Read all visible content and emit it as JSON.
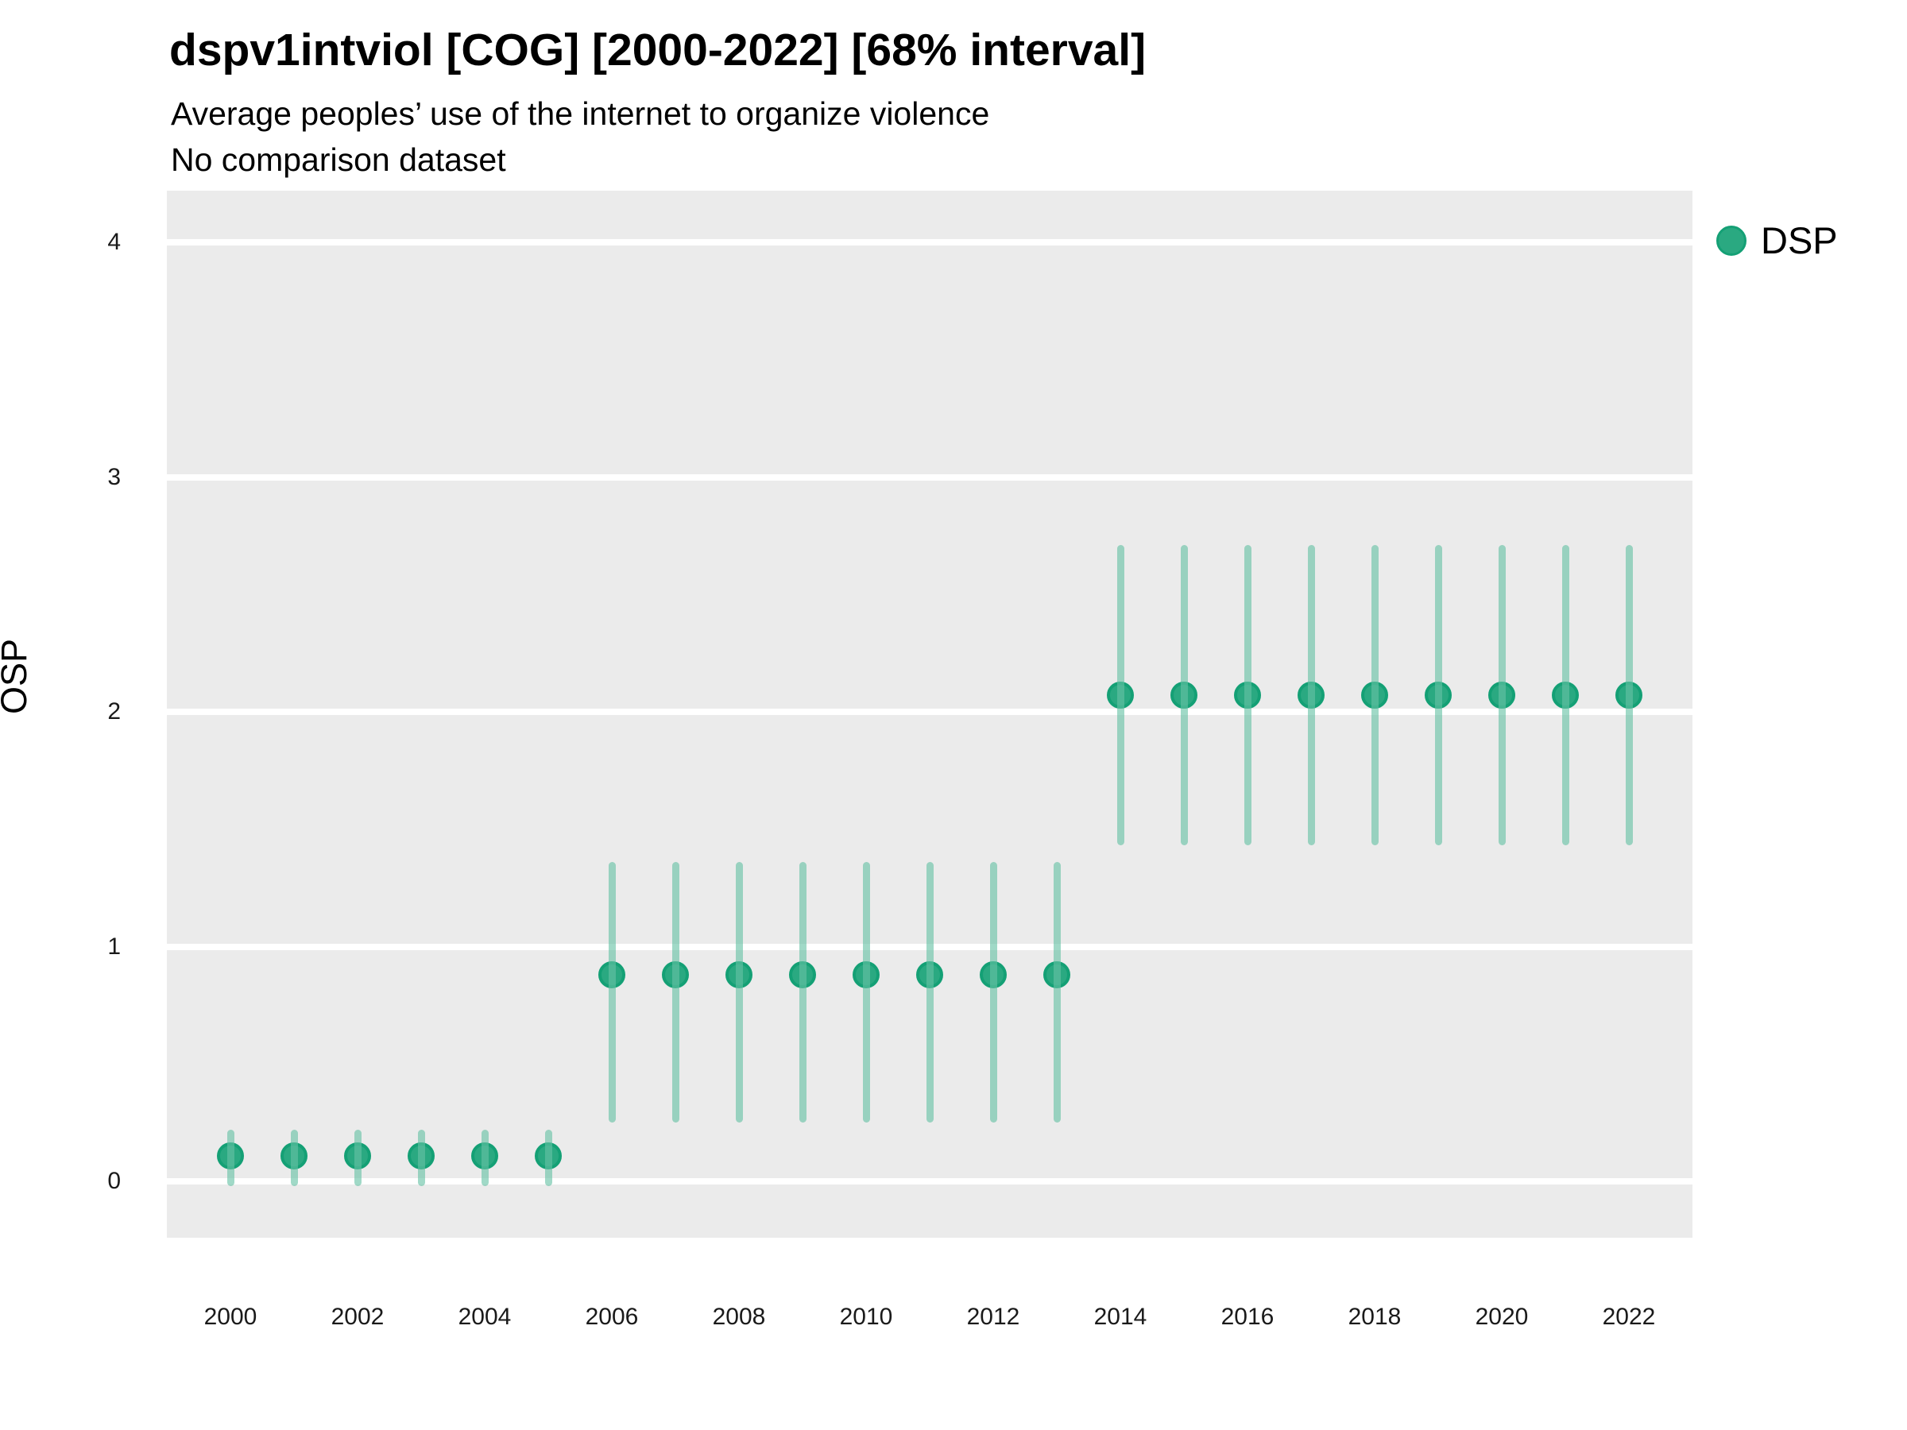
{
  "title": "dspv1intviol [COG] [2000-2022] [68% interval]",
  "subtitle": "Average peoples’ use of the internet to organize violence",
  "note": "No comparison dataset",
  "legend": {
    "position": "right",
    "items": [
      {
        "label": "DSP",
        "color": "#2AA981",
        "border_color": "#14A075"
      }
    ]
  },
  "colors": {
    "panel_background": "#EBEBEB",
    "gridline": "#FFFFFF",
    "point_fill": "#2AA981",
    "point_border": "#14A075",
    "interval_bar": "rgba(102,194,165,0.62)",
    "text": "#000000"
  },
  "chart_data": {
    "type": "scatter",
    "title": "dspv1intviol [COG] [2000-2022] [68% interval]",
    "subtitle": "Average peoples’ use of the internet to organize violence",
    "note": "No comparison dataset",
    "xlabel": "",
    "ylabel": "OSP",
    "legend_position": "right",
    "grid": "major-horizontal",
    "xlim": [
      1999,
      2023
    ],
    "ylim": [
      -0.24,
      4.22
    ],
    "x_ticks": [
      2000,
      2002,
      2004,
      2006,
      2008,
      2010,
      2012,
      2014,
      2016,
      2018,
      2020,
      2022
    ],
    "y_ticks": [
      0,
      1,
      2,
      3,
      4
    ],
    "interval": "68%",
    "series": [
      {
        "name": "DSP",
        "points": [
          {
            "year": 2000,
            "value": 0.11,
            "lower": -0.02,
            "upper": 0.22
          },
          {
            "year": 2001,
            "value": 0.11,
            "lower": -0.02,
            "upper": 0.22
          },
          {
            "year": 2002,
            "value": 0.11,
            "lower": -0.02,
            "upper": 0.22
          },
          {
            "year": 2003,
            "value": 0.11,
            "lower": -0.02,
            "upper": 0.22
          },
          {
            "year": 2004,
            "value": 0.11,
            "lower": -0.02,
            "upper": 0.22
          },
          {
            "year": 2005,
            "value": 0.11,
            "lower": -0.02,
            "upper": 0.22
          },
          {
            "year": 2006,
            "value": 0.88,
            "lower": 0.25,
            "upper": 1.36
          },
          {
            "year": 2007,
            "value": 0.88,
            "lower": 0.25,
            "upper": 1.36
          },
          {
            "year": 2008,
            "value": 0.88,
            "lower": 0.25,
            "upper": 1.36
          },
          {
            "year": 2009,
            "value": 0.88,
            "lower": 0.25,
            "upper": 1.36
          },
          {
            "year": 2010,
            "value": 0.88,
            "lower": 0.25,
            "upper": 1.36
          },
          {
            "year": 2011,
            "value": 0.88,
            "lower": 0.25,
            "upper": 1.36
          },
          {
            "year": 2012,
            "value": 0.88,
            "lower": 0.25,
            "upper": 1.36
          },
          {
            "year": 2013,
            "value": 0.88,
            "lower": 0.25,
            "upper": 1.36
          },
          {
            "year": 2014,
            "value": 2.07,
            "lower": 1.43,
            "upper": 2.71
          },
          {
            "year": 2015,
            "value": 2.07,
            "lower": 1.43,
            "upper": 2.71
          },
          {
            "year": 2016,
            "value": 2.07,
            "lower": 1.43,
            "upper": 2.71
          },
          {
            "year": 2017,
            "value": 2.07,
            "lower": 1.43,
            "upper": 2.71
          },
          {
            "year": 2018,
            "value": 2.07,
            "lower": 1.43,
            "upper": 2.71
          },
          {
            "year": 2019,
            "value": 2.07,
            "lower": 1.43,
            "upper": 2.71
          },
          {
            "year": 2020,
            "value": 2.07,
            "lower": 1.43,
            "upper": 2.71
          },
          {
            "year": 2021,
            "value": 2.07,
            "lower": 1.43,
            "upper": 2.71
          },
          {
            "year": 2022,
            "value": 2.07,
            "lower": 1.43,
            "upper": 2.71
          }
        ]
      }
    ]
  }
}
